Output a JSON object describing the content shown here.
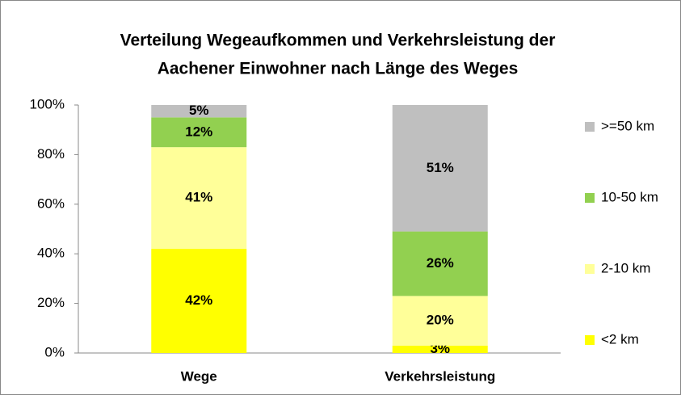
{
  "chart_data": {
    "type": "stacked_bar",
    "title": [
      "Verteilung Wegeaufkommen  und Verkehrsleistung der",
      "Aachener Einwohner nach Länge des Weges"
    ],
    "categories": [
      "Wege",
      "Verkehrsleistung"
    ],
    "series": [
      {
        "name": "<2 km",
        "color": "#ffff00",
        "label_color": "#000000",
        "values": [
          42,
          3
        ],
        "value_labels": [
          "42%",
          "3%"
        ]
      },
      {
        "name": "2-10 km",
        "color": "#ffff99",
        "label_color": "#000000",
        "values": [
          41,
          20
        ],
        "value_labels": [
          "41%",
          "20%"
        ]
      },
      {
        "name": "10-50 km",
        "color": "#92d050",
        "label_color": "#ffffff",
        "values": [
          12,
          26
        ],
        "value_labels": [
          "12%",
          "26%"
        ]
      },
      {
        "name": ">=50 km",
        "color": "#bfbfbf",
        "label_color": "#000000",
        "values": [
          5,
          51
        ],
        "value_labels": [
          "5%",
          "51%"
        ]
      }
    ],
    "ylim": [
      0,
      100
    ],
    "yticks": [
      {
        "value": 0,
        "label": "0%"
      },
      {
        "value": 20,
        "label": "20%"
      },
      {
        "value": 40,
        "label": "40%"
      },
      {
        "value": 60,
        "label": "60%"
      },
      {
        "value": 80,
        "label": "80%"
      },
      {
        "value": 100,
        "label": "100%"
      }
    ],
    "grid": false,
    "legend": "right"
  }
}
